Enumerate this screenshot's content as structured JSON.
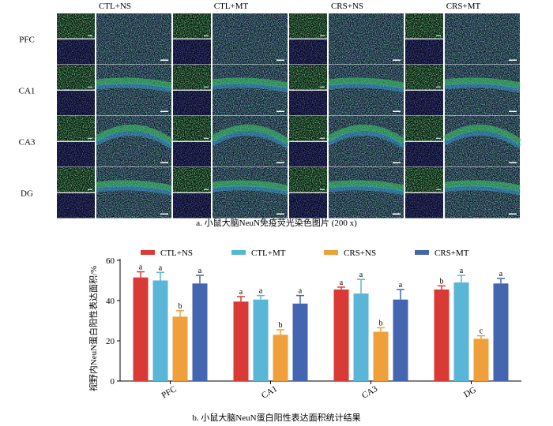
{
  "panel_a": {
    "groups": [
      "CTL+NS",
      "CTL+MT",
      "CRS+NS",
      "CRS+MT"
    ],
    "regions": [
      "PFC",
      "CA1",
      "CA3",
      "DG"
    ],
    "caption": "a.  小鼠大脑NeuN免疫荧光染色图片 (200 x)",
    "colors": {
      "neun": "#3fd06a",
      "dapi": "#3a3ad8",
      "background": "#0a0a0a"
    }
  },
  "chart_data": {
    "type": "bar",
    "categories": [
      "PFC",
      "CA1",
      "CA3",
      "DG"
    ],
    "ylabel": "视野内NeuN蛋白阳性表达面积/%",
    "ylim": [
      0,
      60
    ],
    "yticks": [
      0,
      20,
      40,
      60
    ],
    "legend_position": "top",
    "series": [
      {
        "name": "CTL+NS",
        "color": "#d93a35",
        "values": [
          51.5,
          39.5,
          45.5,
          45.5
        ],
        "errors": [
          2.8,
          2.5,
          1.2,
          1.8
        ],
        "labels": [
          "a",
          "a",
          "a",
          "b"
        ]
      },
      {
        "name": "CTL+MT",
        "color": "#5ab6d6",
        "values": [
          50.0,
          40.5,
          43.5,
          49.0
        ],
        "errors": [
          4.0,
          2.0,
          7.0,
          3.5
        ],
        "labels": [
          "a",
          "a",
          "a",
          "a"
        ]
      },
      {
        "name": "CRS+NS",
        "color": "#f0a03b",
        "values": [
          32.0,
          23.0,
          24.5,
          21.0
        ],
        "errors": [
          3.0,
          2.5,
          2.0,
          1.5
        ],
        "labels": [
          "b",
          "b",
          "b",
          "c"
        ]
      },
      {
        "name": "CRS+MT",
        "color": "#4466b0",
        "values": [
          48.5,
          38.5,
          40.5,
          48.5
        ],
        "errors": [
          4.0,
          4.0,
          5.0,
          2.5
        ],
        "labels": [
          "a",
          "a",
          "a",
          "a"
        ]
      }
    ],
    "caption": "b.  小鼠大脑NeuN蛋白阳性表达面积统计结果"
  }
}
